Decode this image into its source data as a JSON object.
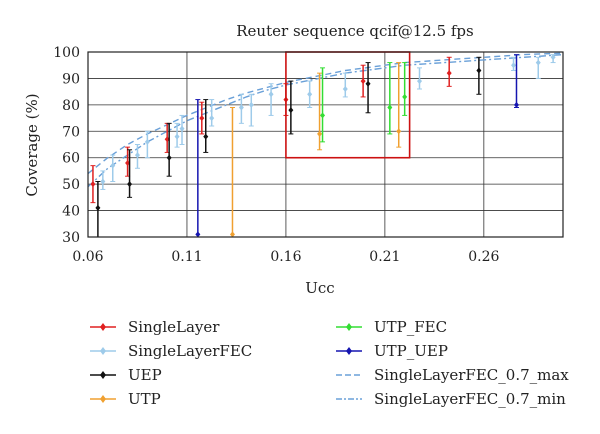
{
  "chart_data": {
    "type": "scatter",
    "title": "Reuter sequence qcif@12.5 fps",
    "xlabel": "Ucc",
    "ylabel": "Coverage (%)",
    "xlim": [
      0.06,
      0.3
    ],
    "ylim": [
      30,
      100
    ],
    "x_ticks": [
      "0.06",
      "0.11",
      "0.16",
      "0.21",
      "0.26"
    ],
    "x_tick_values": [
      0.06,
      0.11,
      0.16,
      0.21,
      0.26
    ],
    "y_ticks": [
      "30",
      "40",
      "50",
      "60",
      "70",
      "80",
      "90",
      "100"
    ],
    "y_tick_values": [
      30,
      40,
      50,
      60,
      70,
      80,
      90,
      100
    ],
    "grid": "major",
    "legend_position": "bottom",
    "zoom_box": {
      "x": [
        0.16,
        0.2225
      ],
      "y": [
        60,
        100
      ],
      "color": "#cc1111"
    },
    "series": [
      {
        "name": "SingleLayer",
        "color": "#e02020",
        "style": "errorbar",
        "points": [
          {
            "x": 0.0625,
            "y": 50,
            "ymin": 43,
            "ymax": 57
          },
          {
            "x": 0.08,
            "y": 58,
            "ymin": 53,
            "ymax": 64
          },
          {
            "x": 0.1,
            "y": 67,
            "ymin": 62,
            "ymax": 73
          },
          {
            "x": 0.1175,
            "y": 75,
            "ymin": 69,
            "ymax": 81
          },
          {
            "x": 0.16,
            "y": 82,
            "ymin": 76,
            "ymax": 88
          },
          {
            "x": 0.199,
            "y": 89,
            "ymin": 83,
            "ymax": 95
          },
          {
            "x": 0.2425,
            "y": 92,
            "ymin": 87,
            "ymax": 98
          }
        ]
      },
      {
        "name": "SingleLayerFEC",
        "color": "#9ecbea",
        "style": "errorbar",
        "points": [
          {
            "x": 0.0675,
            "y": 51,
            "ymin": 48,
            "ymax": 55
          },
          {
            "x": 0.0725,
            "y": 57,
            "ymin": 51,
            "ymax": 61
          },
          {
            "x": 0.085,
            "y": 61,
            "ymin": 56,
            "ymax": 65
          },
          {
            "x": 0.09,
            "y": 66,
            "ymin": 60,
            "ymax": 70
          },
          {
            "x": 0.105,
            "y": 68,
            "ymin": 64,
            "ymax": 73
          },
          {
            "x": 0.1075,
            "y": 71,
            "ymin": 65,
            "ymax": 76
          },
          {
            "x": 0.1225,
            "y": 75,
            "ymin": 72,
            "ymax": 82
          },
          {
            "x": 0.1375,
            "y": 79,
            "ymin": 73,
            "ymax": 84
          },
          {
            "x": 0.1425,
            "y": 80,
            "ymin": 72,
            "ymax": 84
          },
          {
            "x": 0.1525,
            "y": 84,
            "ymin": 76,
            "ymax": 88
          },
          {
            "x": 0.172,
            "y": 84,
            "ymin": 79,
            "ymax": 89
          },
          {
            "x": 0.19,
            "y": 86,
            "ymin": 83,
            "ymax": 92
          },
          {
            "x": 0.2275,
            "y": 89,
            "ymin": 86,
            "ymax": 94
          },
          {
            "x": 0.275,
            "y": 95,
            "ymin": 93,
            "ymax": 98
          },
          {
            "x": 0.2875,
            "y": 96,
            "ymin": 90,
            "ymax": 98
          },
          {
            "x": 0.295,
            "y": 98,
            "ymin": 96,
            "ymax": 99
          }
        ]
      },
      {
        "name": "UEP",
        "color": "#111111",
        "style": "errorbar",
        "points": [
          {
            "x": 0.065,
            "y": 41,
            "ymin": 30,
            "ymax": 51
          },
          {
            "x": 0.081,
            "y": 50,
            "ymin": 45,
            "ymax": 63
          },
          {
            "x": 0.101,
            "y": 60,
            "ymin": 53,
            "ymax": 73
          },
          {
            "x": 0.1195,
            "y": 68,
            "ymin": 62,
            "ymax": 82
          },
          {
            "x": 0.1625,
            "y": 78,
            "ymin": 69,
            "ymax": 89
          },
          {
            "x": 0.2015,
            "y": 88,
            "ymin": 77,
            "ymax": 96
          },
          {
            "x": 0.2575,
            "y": 93,
            "ymin": 84,
            "ymax": 98
          }
        ]
      },
      {
        "name": "UTP",
        "color": "#f0a030",
        "style": "errorbar",
        "points": [
          {
            "x": 0.133,
            "y": 31,
            "ymin": 30,
            "ymax": 79
          },
          {
            "x": 0.177,
            "y": 69,
            "ymin": 63,
            "ymax": 92
          },
          {
            "x": 0.217,
            "y": 70,
            "ymin": 64,
            "ymax": 96
          }
        ]
      },
      {
        "name": "UTP_FEC",
        "color": "#33dd33",
        "style": "errorbar",
        "points": [
          {
            "x": 0.1785,
            "y": 76,
            "ymin": 66,
            "ymax": 94
          },
          {
            "x": 0.2125,
            "y": 79,
            "ymin": 69,
            "ymax": 96
          },
          {
            "x": 0.22,
            "y": 83,
            "ymin": 76,
            "ymax": 96
          }
        ]
      },
      {
        "name": "UTP_UEP",
        "color": "#1515b0",
        "style": "errorbar",
        "points": [
          {
            "x": 0.1155,
            "y": 31,
            "ymin": 30,
            "ymax": 82
          },
          {
            "x": 0.2765,
            "y": 80,
            "ymin": 79,
            "ymax": 99
          }
        ]
      },
      {
        "name": "SingleLayerFEC_0.7_max",
        "color": "#6aa0d8",
        "style": "dashed",
        "points": [
          [
            0.06,
            54
          ],
          [
            0.07,
            60
          ],
          [
            0.08,
            65
          ],
          [
            0.09,
            69
          ],
          [
            0.1,
            72.5
          ],
          [
            0.11,
            76
          ],
          [
            0.12,
            79
          ],
          [
            0.13,
            82
          ],
          [
            0.14,
            84.5
          ],
          [
            0.15,
            86.5
          ],
          [
            0.16,
            88.5
          ],
          [
            0.17,
            90
          ],
          [
            0.18,
            91.5
          ],
          [
            0.19,
            93
          ],
          [
            0.2,
            94
          ],
          [
            0.21,
            95
          ],
          [
            0.22,
            96
          ],
          [
            0.23,
            96.5
          ],
          [
            0.24,
            97
          ],
          [
            0.25,
            97.5
          ],
          [
            0.26,
            98
          ],
          [
            0.27,
            98.5
          ],
          [
            0.28,
            99
          ],
          [
            0.29,
            99.3
          ],
          [
            0.3,
            99.5
          ]
        ]
      },
      {
        "name": "SingleLayerFEC_0.7_min",
        "color": "#6aa0d8",
        "style": "dashdot",
        "points": [
          [
            0.06,
            49
          ],
          [
            0.07,
            56
          ],
          [
            0.08,
            61
          ],
          [
            0.09,
            66
          ],
          [
            0.1,
            70
          ],
          [
            0.11,
            74
          ],
          [
            0.12,
            77
          ],
          [
            0.13,
            80
          ],
          [
            0.14,
            83
          ],
          [
            0.15,
            85.5
          ],
          [
            0.16,
            87.5
          ],
          [
            0.17,
            89
          ],
          [
            0.18,
            90.5
          ],
          [
            0.19,
            92
          ],
          [
            0.2,
            93
          ],
          [
            0.21,
            94
          ],
          [
            0.22,
            95
          ],
          [
            0.23,
            95.5
          ],
          [
            0.24,
            96
          ],
          [
            0.25,
            96.5
          ],
          [
            0.26,
            97
          ],
          [
            0.27,
            97.5
          ],
          [
            0.28,
            98
          ],
          [
            0.29,
            98.5
          ],
          [
            0.3,
            99
          ]
        ]
      }
    ]
  }
}
